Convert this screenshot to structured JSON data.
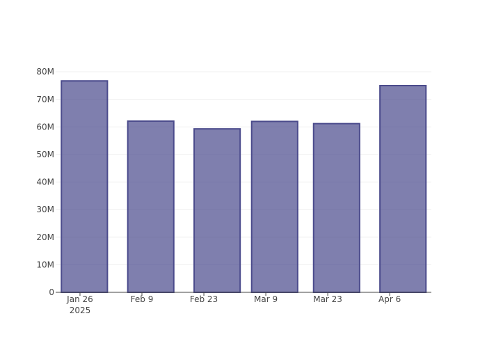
{
  "chart_data": {
    "type": "bar",
    "x": [
      "2025-01-27",
      "2025-02-11",
      "2025-02-26",
      "2025-03-11",
      "2025-03-25",
      "2025-04-09"
    ],
    "values": [
      76700000,
      62100000,
      59300000,
      62000000,
      61200000,
      75000000
    ],
    "color": "rgba(72,72,140,0.7)",
    "line_color": "#4b4b8c",
    "xlim": [
      "2025-01-20T12:00",
      "2025-04-15T10:00"
    ],
    "xticks": [
      {
        "value": "2025-01-26",
        "label": "Jan 26\n2025"
      },
      {
        "value": "2025-02-09",
        "label": "Feb 9"
      },
      {
        "value": "2025-02-23",
        "label": "Feb 23"
      },
      {
        "value": "2025-03-09",
        "label": "Mar 9"
      },
      {
        "value": "2025-03-23",
        "label": "Mar 23"
      },
      {
        "value": "2025-04-06",
        "label": "Apr 6"
      }
    ],
    "ylim": [
      0,
      80800000
    ],
    "yticks": [
      0,
      {
        "value": 10000000,
        "label": "10M"
      },
      {
        "value": 20000000,
        "label": "20M"
      },
      {
        "value": 30000000,
        "label": "30M"
      },
      {
        "value": 40000000,
        "label": "40M"
      },
      {
        "value": 50000000,
        "label": "50M"
      },
      {
        "value": 60000000,
        "label": "60M"
      },
      {
        "value": 70000000,
        "label": "70M"
      },
      {
        "value": 80000000,
        "label": "80M"
      }
    ],
    "grid": true
  }
}
